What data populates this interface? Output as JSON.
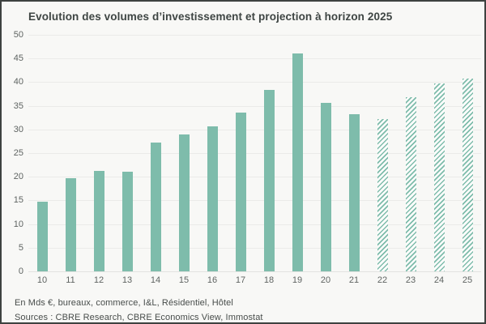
{
  "window": {
    "background_color": "#f8f8f6",
    "border_color": "#3e4240",
    "bar_color": "#7ebcab",
    "gridline_color": "#ebebe9"
  },
  "chart_data": {
    "type": "bar",
    "title": "Evolution des volumes d’investissement et projection à horizon 2025",
    "categories": [
      "10",
      "11",
      "12",
      "13",
      "14",
      "15",
      "16",
      "17",
      "18",
      "19",
      "20",
      "21",
      "22",
      "23",
      "24",
      "25"
    ],
    "values": [
      14.8,
      19.7,
      21.3,
      21.0,
      27.3,
      29.0,
      30.6,
      33.6,
      38.3,
      46.0,
      35.7,
      33.3,
      32.2,
      36.9,
      39.7,
      40.8
    ],
    "projection_start_index": 12,
    "projection_style": "diagonal-hatch",
    "xlabel": "",
    "ylabel": "",
    "ylim": [
      0,
      50
    ],
    "ytick_step": 5,
    "ytick_labels": [
      "0",
      "5",
      "10",
      "15",
      "20",
      "25",
      "30",
      "35",
      "40",
      "45",
      "50"
    ],
    "grid": "horizontal",
    "legend": "none",
    "bar_color": "#7ebcab",
    "unit_note": "En Mds €"
  },
  "footer": {
    "line1": "En Mds €, bureaux, commerce, I&L, Résidentiel, Hôtel",
    "line2": "Sources : CBRE Research, CBRE Economics View, Immostat"
  }
}
